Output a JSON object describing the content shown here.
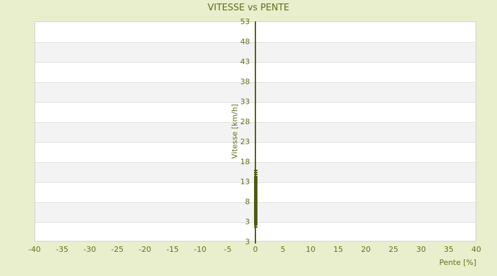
{
  "title": "VITESSE vs PENTE",
  "x_axis": {
    "label": "Pente [%]",
    "tick_labels": [
      "-40",
      "-35",
      "-30",
      "-25",
      "-20",
      "-15",
      "-10",
      "-5",
      "0",
      "5",
      "10",
      "15",
      "20",
      "25",
      "30",
      "35",
      "40"
    ]
  },
  "y_axis": {
    "label": "Vitesse [km/h]",
    "tick_labels_top_to_bottom": [
      "53",
      "48",
      "43",
      "38",
      "33",
      "28",
      "23",
      "18",
      "13",
      "8",
      "3",
      "3"
    ]
  },
  "colors": {
    "background": "#e9eecd",
    "plot_background": "#ffffff",
    "band_alternate": "#f3f3f4",
    "grid_line": "#e1e1e1",
    "plot_border": "#d3d3d3",
    "text": "#5d6e1a",
    "axis_line": "#55630f",
    "point": "#4d5b10"
  },
  "chart_data": {
    "type": "scatter",
    "title": "VITESSE vs PENTE",
    "xlabel": "Pente [%]",
    "ylabel": "Vitesse [km/h]",
    "xlim": [
      -40,
      40
    ],
    "ylim": [
      3,
      53
    ],
    "x_ticks": [
      -40,
      -35,
      -30,
      -25,
      -20,
      -15,
      -10,
      -5,
      0,
      5,
      10,
      15,
      20,
      25,
      30,
      35,
      40
    ],
    "y_ticks": [
      3,
      8,
      13,
      18,
      23,
      28,
      33,
      38,
      43,
      48,
      53
    ],
    "y_axis_bottom_duplicate_label": 3,
    "grid": "horizontal-bands",
    "legend": "none",
    "series": [
      {
        "name": "Vitesse",
        "marker": "small-square",
        "color": "#4d5b10",
        "note": "All points lie at Pente = 0%; dense overlapping vertical cluster",
        "dense_cluster": {
          "x": 0,
          "y_min": 2.0,
          "y_max": 14.3
        },
        "outlier_points": [
          {
            "x": 0,
            "y": 15.8
          },
          {
            "x": 0,
            "y": 15.2
          },
          {
            "x": 0,
            "y": 14.7
          },
          {
            "x": 0,
            "y": 1.6
          }
        ]
      }
    ]
  }
}
